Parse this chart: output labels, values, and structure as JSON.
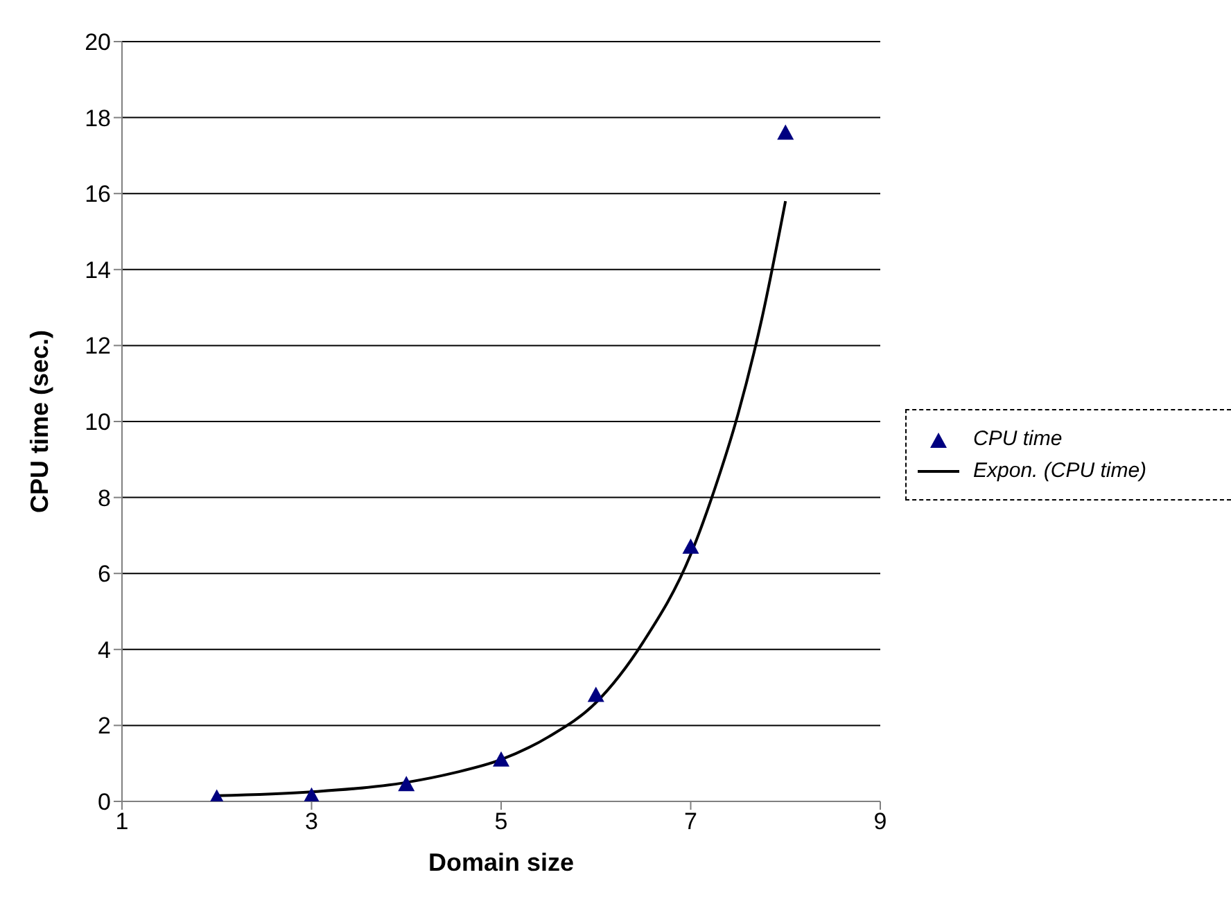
{
  "chart_data": {
    "type": "scatter",
    "xlabel": "Domain size",
    "ylabel": "CPU time (sec.)",
    "xlim": [
      1,
      9
    ],
    "xticks": [
      1,
      3,
      5,
      7,
      9
    ],
    "ylim": [
      0,
      20
    ],
    "yticks": [
      0,
      2,
      4,
      6,
      8,
      10,
      12,
      14,
      16,
      18,
      20
    ],
    "grid": "y",
    "legend": "right",
    "series": [
      {
        "name": "CPU time",
        "marker": "triangle",
        "color": "#000080",
        "x": [
          2,
          3,
          4,
          5,
          6,
          7,
          8
        ],
        "values": [
          0.1,
          0.15,
          0.45,
          1.1,
          2.8,
          6.7,
          17.6
        ]
      },
      {
        "name": "Expon. (CPU time)",
        "type": "line",
        "marker": "none",
        "color": "#000000",
        "x": [
          2,
          3,
          4,
          4.5,
          5,
          5.5,
          6,
          6.5,
          7,
          7.25,
          7.5,
          7.75,
          8
        ],
        "values": [
          0.15,
          0.25,
          0.5,
          0.75,
          1.1,
          1.7,
          2.6,
          4.2,
          6.5,
          8.2,
          10.2,
          12.7,
          15.8
        ]
      }
    ]
  }
}
